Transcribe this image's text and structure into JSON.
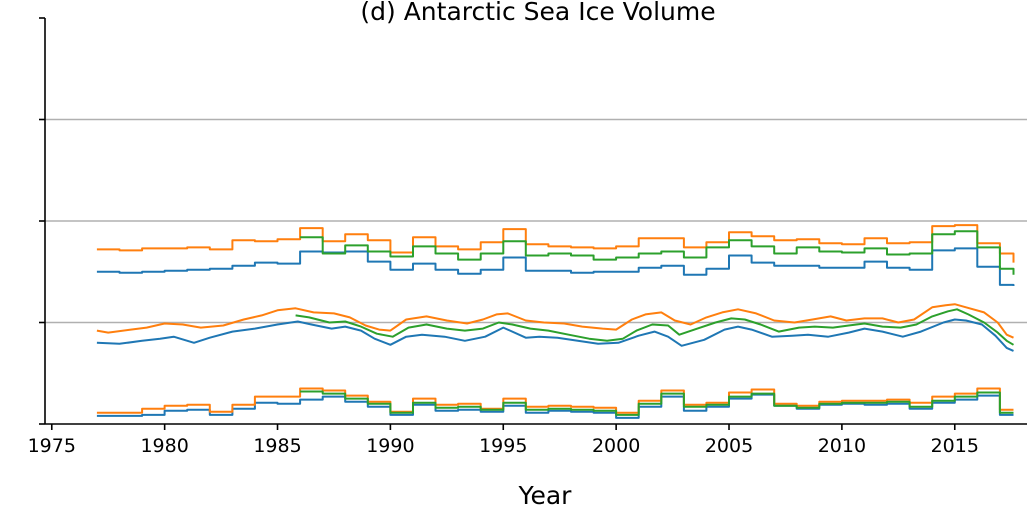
{
  "chart_data": {
    "type": "line",
    "title": "(d) Antarctic Sea Ice Volume",
    "xlabel": "Year",
    "ylabel": "",
    "xlim": [
      1974.7,
      2018.2
    ],
    "ylim": [
      0,
      4
    ],
    "grid": {
      "y": true,
      "x": false
    },
    "x_ticks": [
      1975,
      1980,
      1985,
      1990,
      1995,
      2000,
      2005,
      2010,
      2015
    ],
    "x_tick_labels": [
      "1975",
      "1980",
      "1985",
      "1990",
      "1995",
      "2000",
      "2005",
      "2010",
      "2015"
    ],
    "y_ticks": [
      0,
      1,
      2,
      3,
      4
    ],
    "y_tick_labels": [
      "",
      "",
      "",
      "",
      ""
    ],
    "colors": {
      "blue": "#1f77b4",
      "orange": "#ff7f0e",
      "green": "#2ca02c",
      "grid": "#b0b0b0"
    },
    "groups": [
      {
        "step": true,
        "series": [
          {
            "color": "#1f77b4",
            "x": [
              1977,
              1978,
              1979,
              1980,
              1981,
              1982,
              1983,
              1984,
              1985,
              1986,
              1987,
              1988,
              1989,
              1990,
              1991,
              1992,
              1993,
              1994,
              1995,
              1996,
              1997,
              1998,
              1999,
              2000,
              2001,
              2002,
              2003,
              2004,
              2005,
              2006,
              2007,
              2008,
              2009,
              2010,
              2011,
              2012,
              2013,
              2014,
              2015,
              2016,
              2017,
              2017.6
            ],
            "y": [
              0.08,
              0.08,
              0.09,
              0.13,
              0.14,
              0.09,
              0.15,
              0.21,
              0.2,
              0.24,
              0.27,
              0.22,
              0.17,
              0.09,
              0.19,
              0.13,
              0.14,
              0.12,
              0.18,
              0.11,
              0.13,
              0.12,
              0.11,
              0.06,
              0.17,
              0.27,
              0.13,
              0.17,
              0.25,
              0.29,
              0.18,
              0.15,
              0.19,
              0.2,
              0.19,
              0.2,
              0.15,
              0.21,
              0.24,
              0.28,
              0.09,
              0.09
            ]
          },
          {
            "color": "#ff7f0e",
            "x": [
              1977,
              1978,
              1979,
              1980,
              1981,
              1982,
              1983,
              1984,
              1985,
              1986,
              1987,
              1988,
              1989,
              1990,
              1991,
              1992,
              1993,
              1994,
              1995,
              1996,
              1997,
              1998,
              1999,
              2000,
              2001,
              2002,
              2003,
              2004,
              2005,
              2006,
              2007,
              2008,
              2009,
              2010,
              2011,
              2012,
              2013,
              2014,
              2015,
              2016,
              2017,
              2017.6
            ],
            "y": [
              0.11,
              0.11,
              0.15,
              0.18,
              0.19,
              0.12,
              0.19,
              0.27,
              0.27,
              0.35,
              0.33,
              0.28,
              0.22,
              0.12,
              0.25,
              0.19,
              0.2,
              0.15,
              0.25,
              0.17,
              0.18,
              0.17,
              0.16,
              0.11,
              0.23,
              0.33,
              0.19,
              0.21,
              0.31,
              0.34,
              0.2,
              0.18,
              0.22,
              0.23,
              0.23,
              0.24,
              0.21,
              0.27,
              0.3,
              0.35,
              0.14,
              0.14
            ]
          },
          {
            "color": "#2ca02c",
            "x": [
              1986,
              1987,
              1988,
              1989,
              1990,
              1991,
              1992,
              1993,
              1994,
              1995,
              1996,
              1997,
              1998,
              1999,
              2000,
              2001,
              2002,
              2003,
              2004,
              2005,
              2006,
              2007,
              2008,
              2009,
              2010,
              2011,
              2012,
              2013,
              2014,
              2015,
              2016,
              2017,
              2017.6
            ],
            "y": [
              0.32,
              0.3,
              0.25,
              0.2,
              0.11,
              0.21,
              0.16,
              0.17,
              0.14,
              0.21,
              0.14,
              0.15,
              0.14,
              0.13,
              0.09,
              0.2,
              0.3,
              0.17,
              0.19,
              0.27,
              0.3,
              0.18,
              0.16,
              0.2,
              0.21,
              0.21,
              0.22,
              0.17,
              0.23,
              0.27,
              0.31,
              0.11,
              0.11
            ]
          }
        ]
      },
      {
        "step": false,
        "series": [
          {
            "color": "#1f77b4",
            "x": [
              1977,
              1978,
              1979,
              1979.8,
              1980.4,
              1981.3,
              1982,
              1983,
              1984,
              1985,
              1985.9,
              1986.5,
              1987.4,
              1988,
              1988.7,
              1989.3,
              1990,
              1990.7,
              1991.4,
              1992.4,
              1993.3,
              1994.2,
              1995,
              1996,
              1996.6,
              1997.4,
              1998.3,
              1999.2,
              2000.1,
              2001,
              2001.7,
              2002.3,
              2002.9,
              2003.9,
              2004.8,
              2005.4,
              2006,
              2006.9,
              2007.8,
              2008.5,
              2009.4,
              2010.3,
              2011,
              2011.8,
              2012.7,
              2013.5,
              2014.5,
              2015,
              2015.5,
              2016.2,
              2016.8,
              2017.3,
              2017.6
            ],
            "y": [
              0.8,
              0.79,
              0.82,
              0.84,
              0.86,
              0.8,
              0.85,
              0.91,
              0.94,
              0.98,
              1.01,
              0.98,
              0.94,
              0.96,
              0.92,
              0.84,
              0.78,
              0.86,
              0.88,
              0.86,
              0.82,
              0.86,
              0.95,
              0.85,
              0.86,
              0.85,
              0.82,
              0.79,
              0.8,
              0.87,
              0.91,
              0.86,
              0.77,
              0.83,
              0.93,
              0.96,
              0.93,
              0.86,
              0.87,
              0.88,
              0.86,
              0.9,
              0.94,
              0.91,
              0.86,
              0.91,
              1.0,
              1.03,
              1.02,
              0.98,
              0.87,
              0.75,
              0.72
            ]
          },
          {
            "color": "#ff7f0e",
            "x": [
              1977,
              1977.5,
              1978.5,
              1979.2,
              1980,
              1980.8,
              1981.6,
              1982.6,
              1983.5,
              1984.3,
              1985,
              1985.8,
              1986.6,
              1987.5,
              1988.2,
              1988.9,
              1989.5,
              1990,
              1990.7,
              1991.6,
              1992.5,
              1993.4,
              1994.1,
              1994.7,
              1995.2,
              1996,
              1996.8,
              1997.7,
              1998.5,
              1999.4,
              2000,
              2000.7,
              2001.3,
              2002,
              2002.6,
              2003.3,
              2004,
              2004.7,
              2005.4,
              2006.2,
              2007,
              2007.9,
              2008.7,
              2009.5,
              2010.2,
              2011,
              2011.8,
              2012.5,
              2013.2,
              2014,
              2014.6,
              2015,
              2015.5,
              2016.3,
              2016.9,
              2017.3,
              2017.6
            ],
            "y": [
              0.92,
              0.9,
              0.93,
              0.95,
              0.99,
              0.98,
              0.95,
              0.97,
              1.03,
              1.07,
              1.12,
              1.14,
              1.1,
              1.09,
              1.05,
              0.97,
              0.93,
              0.92,
              1.03,
              1.06,
              1.02,
              0.99,
              1.03,
              1.08,
              1.09,
              1.02,
              1.0,
              0.99,
              0.96,
              0.94,
              0.93,
              1.03,
              1.08,
              1.1,
              1.02,
              0.98,
              1.05,
              1.1,
              1.13,
              1.09,
              1.02,
              1.0,
              1.03,
              1.06,
              1.02,
              1.04,
              1.04,
              1.0,
              1.03,
              1.15,
              1.17,
              1.18,
              1.15,
              1.1,
              1.0,
              0.88,
              0.85
            ]
          },
          {
            "color": "#2ca02c",
            "x": [
              1985.8,
              1986.4,
              1987.3,
              1988,
              1988.7,
              1989.4,
              1990.1,
              1990.8,
              1991.6,
              1992.5,
              1993.3,
              1994.1,
              1994.8,
              1995.4,
              1996.2,
              1997,
              1997.9,
              1998.8,
              1999.6,
              2000.3,
              2000.9,
              2001.6,
              2002.3,
              2002.8,
              2003.6,
              2004.4,
              2005.1,
              2005.7,
              2006.4,
              2007.2,
              2008.1,
              2008.8,
              2009.6,
              2010.3,
              2011,
              2011.8,
              2012.6,
              2013.3,
              2014,
              2014.7,
              2015.1,
              2015.6,
              2016.3,
              2016.9,
              2017.3,
              2017.6
            ],
            "y": [
              1.07,
              1.05,
              1.0,
              1.01,
              0.96,
              0.89,
              0.86,
              0.95,
              0.98,
              0.94,
              0.92,
              0.94,
              1.0,
              0.98,
              0.94,
              0.92,
              0.88,
              0.84,
              0.82,
              0.84,
              0.92,
              0.98,
              0.97,
              0.88,
              0.94,
              1.0,
              1.04,
              1.03,
              0.98,
              0.91,
              0.95,
              0.96,
              0.95,
              0.97,
              0.99,
              0.96,
              0.95,
              0.98,
              1.06,
              1.11,
              1.13,
              1.08,
              1.0,
              0.9,
              0.82,
              0.78
            ]
          }
        ]
      },
      {
        "step": true,
        "series": [
          {
            "color": "#1f77b4",
            "x": [
              1977,
              1978,
              1979,
              1980,
              1981,
              1982,
              1983,
              1984,
              1985,
              1986,
              1987,
              1988,
              1989,
              1990,
              1991,
              1992,
              1993,
              1994,
              1995,
              1996,
              1997,
              1998,
              1999,
              2000,
              2001,
              2002,
              2003,
              2004,
              2005,
              2006,
              2007,
              2008,
              2009,
              2010,
              2011,
              2012,
              2013,
              2014,
              2015,
              2016,
              2017,
              2017.6
            ],
            "y": [
              1.5,
              1.49,
              1.5,
              1.51,
              1.52,
              1.53,
              1.56,
              1.59,
              1.58,
              1.7,
              1.69,
              1.7,
              1.6,
              1.52,
              1.58,
              1.52,
              1.48,
              1.52,
              1.64,
              1.51,
              1.51,
              1.49,
              1.5,
              1.5,
              1.54,
              1.56,
              1.47,
              1.53,
              1.66,
              1.59,
              1.56,
              1.56,
              1.54,
              1.54,
              1.6,
              1.54,
              1.52,
              1.71,
              1.73,
              1.55,
              1.37,
              1.36
            ]
          },
          {
            "color": "#ff7f0e",
            "x": [
              1977,
              1978,
              1979,
              1980,
              1981,
              1982,
              1983,
              1984,
              1985,
              1986,
              1987,
              1988,
              1989,
              1990,
              1991,
              1992,
              1993,
              1994,
              1995,
              1996,
              1997,
              1998,
              1999,
              2000,
              2001,
              2002,
              2003,
              2004,
              2005,
              2006,
              2007,
              2008,
              2009,
              2010,
              2011,
              2012,
              2013,
              2014,
              2015,
              2016,
              2017,
              2017.6
            ],
            "y": [
              1.72,
              1.71,
              1.73,
              1.73,
              1.74,
              1.72,
              1.81,
              1.8,
              1.82,
              1.93,
              1.8,
              1.87,
              1.81,
              1.69,
              1.84,
              1.75,
              1.72,
              1.79,
              1.92,
              1.77,
              1.75,
              1.74,
              1.73,
              1.75,
              1.83,
              1.83,
              1.74,
              1.79,
              1.89,
              1.85,
              1.81,
              1.82,
              1.78,
              1.77,
              1.83,
              1.78,
              1.79,
              1.95,
              1.96,
              1.78,
              1.68,
              1.59
            ]
          },
          {
            "color": "#2ca02c",
            "x": [
              1986,
              1987,
              1988,
              1989,
              1990,
              1991,
              1992,
              1993,
              1994,
              1995,
              1996,
              1997,
              1998,
              1999,
              2000,
              2001,
              2002,
              2003,
              2004,
              2005,
              2006,
              2007,
              2008,
              2009,
              2010,
              2011,
              2012,
              2013,
              2014,
              2015,
              2016,
              2017,
              2017.6
            ],
            "y": [
              1.84,
              1.68,
              1.76,
              1.7,
              1.65,
              1.75,
              1.68,
              1.62,
              1.68,
              1.8,
              1.66,
              1.68,
              1.66,
              1.62,
              1.64,
              1.68,
              1.7,
              1.64,
              1.74,
              1.81,
              1.75,
              1.68,
              1.74,
              1.7,
              1.69,
              1.73,
              1.67,
              1.68,
              1.87,
              1.9,
              1.74,
              1.53,
              1.47
            ]
          }
        ]
      }
    ]
  }
}
